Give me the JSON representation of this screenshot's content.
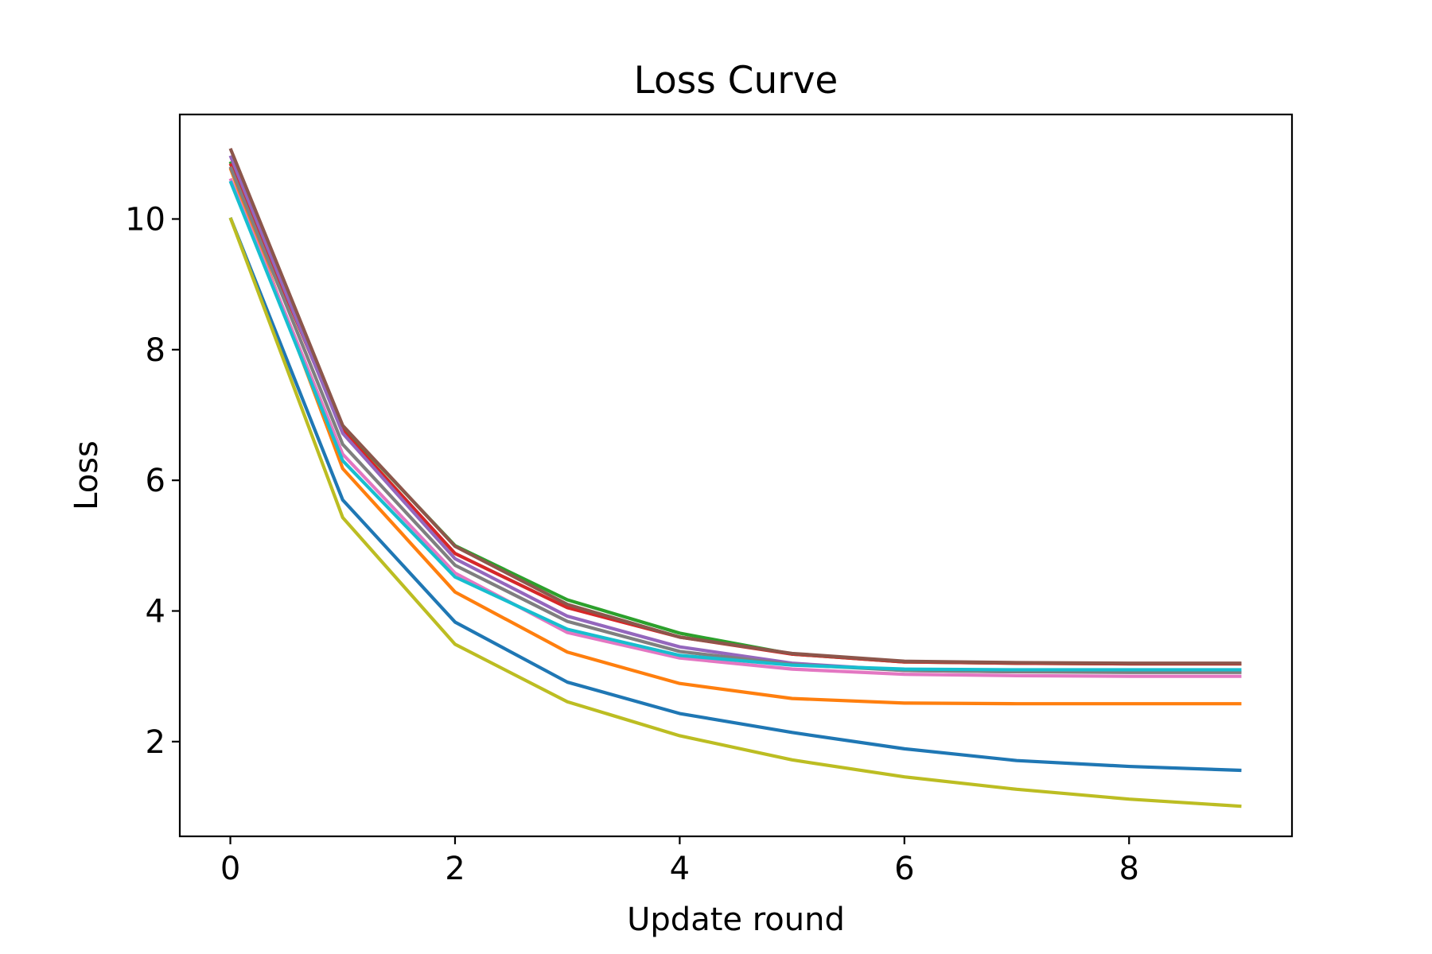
{
  "chart_data": {
    "type": "line",
    "title": "Loss Curve",
    "xlabel": "Update round",
    "ylabel": "Loss",
    "x": [
      0,
      1,
      2,
      3,
      4,
      5,
      6,
      7,
      8,
      9
    ],
    "xlim": [
      -0.45,
      9.45
    ],
    "ylim": [
      0.55,
      11.6
    ],
    "xticks": [
      0,
      2,
      4,
      6,
      8
    ],
    "yticks": [
      2,
      4,
      6,
      8,
      10
    ],
    "grid": false,
    "legend": "none",
    "series": [
      {
        "color": "#1f77b4",
        "values": [
          10.02,
          5.7,
          3.83,
          2.91,
          2.43,
          2.14,
          1.89,
          1.71,
          1.62,
          1.56
        ]
      },
      {
        "color": "#ff7f0e",
        "values": [
          10.78,
          6.18,
          4.29,
          3.37,
          2.89,
          2.66,
          2.59,
          2.58,
          2.58,
          2.58
        ]
      },
      {
        "color": "#2ca02c",
        "values": [
          10.88,
          6.82,
          5.0,
          4.17,
          3.66,
          3.34,
          3.22,
          3.2,
          3.19,
          3.19
        ]
      },
      {
        "color": "#d62728",
        "values": [
          10.85,
          6.76,
          4.88,
          4.05,
          3.6,
          3.34,
          3.22,
          3.2,
          3.19,
          3.19
        ]
      },
      {
        "color": "#9467bd",
        "values": [
          10.97,
          6.72,
          4.8,
          3.92,
          3.45,
          3.2,
          3.09,
          3.07,
          3.07,
          3.07
        ]
      },
      {
        "color": "#8c564b",
        "values": [
          11.08,
          6.84,
          4.99,
          4.1,
          3.6,
          3.35,
          3.23,
          3.21,
          3.2,
          3.2
        ]
      },
      {
        "color": "#e377c2",
        "values": [
          10.62,
          6.4,
          4.58,
          3.67,
          3.28,
          3.11,
          3.03,
          3.01,
          3.0,
          3.0
        ]
      },
      {
        "color": "#7f7f7f",
        "values": [
          10.8,
          6.55,
          4.7,
          3.84,
          3.38,
          3.18,
          3.09,
          3.07,
          3.06,
          3.06
        ]
      },
      {
        "color": "#bcbd22",
        "values": [
          10.02,
          5.43,
          3.49,
          2.61,
          2.09,
          1.72,
          1.46,
          1.27,
          1.12,
          1.01
        ]
      },
      {
        "color": "#17becf",
        "values": [
          10.58,
          6.3,
          4.52,
          3.72,
          3.32,
          3.17,
          3.11,
          3.1,
          3.1,
          3.1
        ]
      }
    ]
  }
}
